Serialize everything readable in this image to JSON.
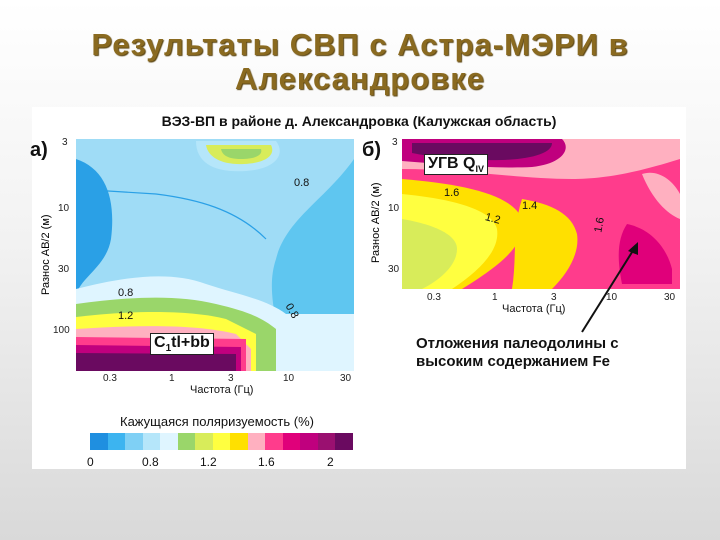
{
  "slide": {
    "title_line1": "Результаты СВП с Астра-МЭРИ в",
    "title_line2": "Александровке"
  },
  "figure": {
    "title": "ВЭЗ-ВП в районе д. Александровка (Калужская область)",
    "panel_a": {
      "label": "а)",
      "ylabel": "Разнос АВ/2 (м)",
      "xlabel": "Частота (Гц)",
      "y_ticks": [
        "3",
        "10",
        "30",
        "100"
      ],
      "x_ticks": [
        "0.3",
        "1",
        "3",
        "10",
        "30"
      ],
      "contour_labels": [
        "0.8",
        "0.8",
        "1.2",
        "0.8"
      ],
      "callout": "C",
      "callout_sub": "1",
      "callout_rest": "tl+bb"
    },
    "panel_b": {
      "label": "б)",
      "ylabel": "Разнос АВ/2 (м)",
      "xlabel": "Частота (Гц)",
      "y_ticks": [
        "3",
        "10",
        "30"
      ],
      "x_ticks": [
        "0.3",
        "1",
        "3",
        "10",
        "30"
      ],
      "contour_labels": [
        "1.6",
        "1.4",
        "1.2",
        "1.6"
      ],
      "callout": "УГВ Q",
      "callout_sub": "IV"
    },
    "annotation_line1": "Отложения палеодолины с",
    "annotation_line2": "высоким содержанием Fe",
    "colorbar": {
      "title": "Кажущаяся поляризуемость (%)",
      "tick_labels": [
        "0",
        "0.8",
        "1.2",
        "1.6",
        "2"
      ],
      "colors": [
        "#1f8fe0",
        "#3cb4f0",
        "#7fd0f5",
        "#b5e6fa",
        "#dff5ff",
        "#9ad66a",
        "#d8ec5a",
        "#ffff40",
        "#ffe000",
        "#ffb0c0",
        "#ff3c8c",
        "#e0007a",
        "#c0007e",
        "#9a1070",
        "#6a0a60"
      ]
    }
  }
}
